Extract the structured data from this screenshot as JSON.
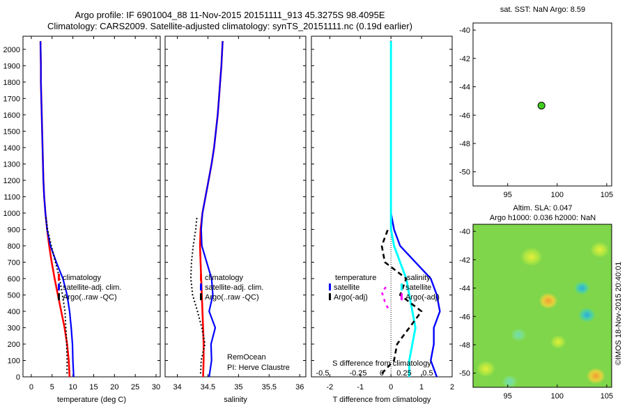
{
  "title_line1": "Argo profile: IF 6901004_88 11-Nov-2015 20151111_913 45.3275S 98.4095E",
  "title_line2": "Climatology: CARS2009. Satellite-adjusted climatology: synTS_20151111.nc (0.19d earlier)",
  "map_top_title": "sat. SST: NaN Argo: 8.59",
  "map_bottom_title1": "Altim. SLA: 0.047",
  "map_bottom_title2": "Argo h1000: 0.036 h2000: NaN",
  "credit": "©IMOS 18-Nov-2015 20:40:01",
  "colors": {
    "climatology": "#ff0000",
    "satellite": "#0000ff",
    "argo": "#000000",
    "salinity_sat": "#00ffff",
    "salinity_argo": "#ff00ff",
    "argo_marker": "#44cc22"
  },
  "chart_data": [
    {
      "type": "line",
      "xlabel": "temperature (deg C)",
      "ylabel": "",
      "xlim": [
        -2,
        31
      ],
      "ylim": [
        2080,
        0
      ],
      "xticks": [
        "0",
        "5",
        "10",
        "15",
        "20",
        "25",
        "30"
      ],
      "yticks": [
        "0",
        "100",
        "200",
        "300",
        "400",
        "500",
        "600",
        "700",
        "800",
        "900",
        "1000",
        "1100",
        "1200",
        "1300",
        "1400",
        "1500",
        "1600",
        "1700",
        "1800",
        "1900",
        "2000"
      ],
      "legend_position": "lower-center",
      "legend": [
        "climatology",
        "satellite-adj. clim.",
        "Argo(..raw -QC)"
      ],
      "series": [
        {
          "name": "climatology",
          "x": [
            9.2,
            9.0,
            8.6,
            8.0,
            7.2,
            6.4,
            5.6,
            4.9,
            4.3,
            3.8,
            3.4,
            3.1,
            2.9,
            2.8,
            2.7,
            2.6,
            2.5,
            2.4,
            2.3,
            2.3,
            2.2
          ],
          "y": [
            0,
            100,
            200,
            300,
            400,
            500,
            600,
            700,
            800,
            900,
            1000,
            1100,
            1200,
            1300,
            1400,
            1500,
            1600,
            1700,
            1800,
            1900,
            2050
          ]
        },
        {
          "name": "satellite-adj. clim.",
          "x": [
            10.2,
            10.0,
            9.9,
            9.6,
            9.2,
            8.6,
            7.6,
            6.0,
            4.6,
            3.8,
            3.4,
            3.1,
            2.9,
            2.8,
            2.7,
            2.6,
            2.5,
            2.4,
            2.3,
            2.3,
            2.2
          ],
          "y": [
            0,
            100,
            200,
            300,
            400,
            500,
            600,
            700,
            800,
            900,
            1000,
            1100,
            1200,
            1300,
            1400,
            1500,
            1600,
            1700,
            1800,
            1900,
            2050
          ]
        },
        {
          "name": "Argo(..raw -QC)",
          "x": [
            8.6,
            8.6,
            8.5,
            8.3,
            8.1,
            7.5,
            6.8,
            5.8,
            4.8,
            3.9,
            3.5
          ],
          "y": [
            20,
            100,
            200,
            300,
            400,
            500,
            600,
            700,
            800,
            900,
            980
          ]
        }
      ]
    },
    {
      "type": "line",
      "xlabel": "salinity",
      "xlim": [
        33.8,
        36.1
      ],
      "ylim": [
        2080,
        0
      ],
      "xticks": [
        "34",
        "34.5",
        "35",
        "35.5",
        "36"
      ],
      "legend_position": "lower-center",
      "legend": [
        "climatology",
        "satellite-adj. clim.",
        "Argo(..raw -QC)"
      ],
      "annotation": [
        "RemOcean",
        "PI: Herve Claustre"
      ],
      "series": [
        {
          "name": "climatology",
          "x": [
            34.42,
            34.43,
            34.43,
            34.42,
            34.41,
            34.4,
            34.39,
            34.38,
            34.37,
            34.38,
            34.41,
            34.46,
            34.51,
            34.56,
            34.6,
            34.63,
            34.66,
            34.68,
            34.7,
            34.72,
            34.74
          ],
          "y": [
            0,
            100,
            200,
            300,
            400,
            500,
            600,
            700,
            800,
            900,
            1000,
            1100,
            1200,
            1300,
            1400,
            1500,
            1600,
            1700,
            1800,
            1900,
            2050
          ]
        },
        {
          "name": "satellite-adj. clim.",
          "x": [
            34.52,
            34.56,
            34.55,
            34.62,
            34.52,
            34.58,
            34.56,
            34.48,
            34.4,
            34.39,
            34.41,
            34.46,
            34.51,
            34.56,
            34.6,
            34.63,
            34.66,
            34.68,
            34.7,
            34.72,
            34.74
          ],
          "y": [
            0,
            100,
            200,
            300,
            400,
            500,
            600,
            700,
            800,
            900,
            1000,
            1100,
            1200,
            1300,
            1400,
            1500,
            1600,
            1700,
            1800,
            1900,
            2050
          ]
        },
        {
          "name": "Argo(..raw -QC)",
          "x": [
            34.38,
            34.39,
            34.45,
            34.4,
            34.33,
            34.25,
            34.22,
            34.23,
            34.26,
            34.3,
            34.32
          ],
          "y": [
            20,
            100,
            200,
            300,
            400,
            500,
            600,
            700,
            800,
            900,
            980
          ]
        }
      ]
    },
    {
      "type": "line",
      "xlabel": "T difference from climatology",
      "top_label": "S difference from climatology",
      "xlim": [
        -2.6,
        2.0
      ],
      "ylim": [
        2080,
        0
      ],
      "xticks": [
        "-2",
        "-1",
        "0",
        "1",
        "2"
      ],
      "top_ticks": [
        "-0.5",
        "-0.25",
        "0",
        "0.25",
        "0.5"
      ],
      "legend_position": "lower-center",
      "legend_titles": [
        "temperature",
        "salinity"
      ],
      "legend": [
        "satellite",
        "Argo(-adj)",
        "satellite",
        "Argo(-adj)"
      ],
      "series": [
        {
          "name": "satellite",
          "x": [
            1.5,
            1.3,
            1.4,
            1.4,
            1.6,
            1.5,
            1.3,
            0.8,
            0.3,
            0.1,
            0.0,
            0.0,
            0.0,
            0.0,
            0.0,
            0.0,
            0.0,
            0.0,
            0.0,
            0.0,
            0.0
          ],
          "y": [
            0,
            100,
            200,
            300,
            400,
            500,
            600,
            700,
            800,
            900,
            1000,
            1100,
            1200,
            1300,
            1400,
            1500,
            1600,
            1700,
            1800,
            1900,
            2050
          ]
        },
        {
          "name": "Argo(-adj)",
          "x": [
            -0.3,
            0.1,
            0.2,
            0.6,
            1.0,
            0.3,
            0.5,
            -0.2,
            -0.3,
            -0.1
          ],
          "y": [
            20,
            100,
            200,
            300,
            400,
            500,
            600,
            700,
            800,
            900
          ]
        },
        {
          "name": "satellite",
          "x": [
            0.6,
            0.6,
            0.7,
            0.8,
            0.7,
            0.6,
            0.5,
            0.3,
            0.1,
            0.0,
            0.0,
            0.0,
            0.0,
            0.0,
            0.0,
            0.0,
            0.0,
            0.0,
            0.0,
            0.0,
            0.0
          ],
          "y": [
            0,
            100,
            200,
            300,
            400,
            500,
            600,
            700,
            800,
            900,
            1000,
            1100,
            1200,
            1300,
            1400,
            1500,
            1600,
            1700,
            1800,
            1900,
            2050
          ]
        },
        {
          "name": "Argo(-adj)",
          "x": [
            -0.1,
            -0.2,
            -0.3,
            -0.1
          ],
          "y": [
            420,
            460,
            520,
            560
          ]
        }
      ]
    },
    {
      "type": "scatter",
      "xlim": [
        91.5,
        105.5
      ],
      "ylim": [
        -51,
        -39.5
      ],
      "xticks": [
        "95",
        "100",
        "105"
      ],
      "yticks": [
        "-40",
        "-42",
        "-44",
        "-46",
        "-48",
        "-50"
      ],
      "points": [
        {
          "x": 98.41,
          "y": -45.33
        }
      ]
    },
    {
      "type": "heatmap",
      "xlim": [
        91.5,
        105.5
      ],
      "ylim": [
        -51,
        -39.5
      ],
      "xticks": [
        "95",
        "100",
        "105"
      ],
      "yticks": [
        "-40",
        "-42",
        "-44",
        "-46",
        "-48",
        "-50"
      ],
      "blobs": [
        {
          "x": 102.5,
          "y": -44.0,
          "r": 0.5,
          "level": "cyan"
        },
        {
          "x": 103.0,
          "y": -45.9,
          "r": 0.55,
          "level": "cyan"
        },
        {
          "x": 99.1,
          "y": -44.9,
          "r": 0.6,
          "level": "orange"
        },
        {
          "x": 103.9,
          "y": -50.2,
          "r": 0.6,
          "level": "orange"
        },
        {
          "x": 92.8,
          "y": -49.7,
          "r": 0.6,
          "level": "yellow"
        },
        {
          "x": 96.1,
          "y": -47.3,
          "r": 0.5,
          "level": "cyan-light"
        },
        {
          "x": 95.2,
          "y": -50.6,
          "r": 0.5,
          "level": "cyan-light"
        },
        {
          "x": 97.4,
          "y": -41.8,
          "r": 0.7,
          "level": "yellow"
        },
        {
          "x": 104.3,
          "y": -41.3,
          "r": 0.6,
          "level": "yellow"
        },
        {
          "x": 100.1,
          "y": -47.8,
          "r": 0.5,
          "level": "yellow"
        }
      ]
    }
  ]
}
